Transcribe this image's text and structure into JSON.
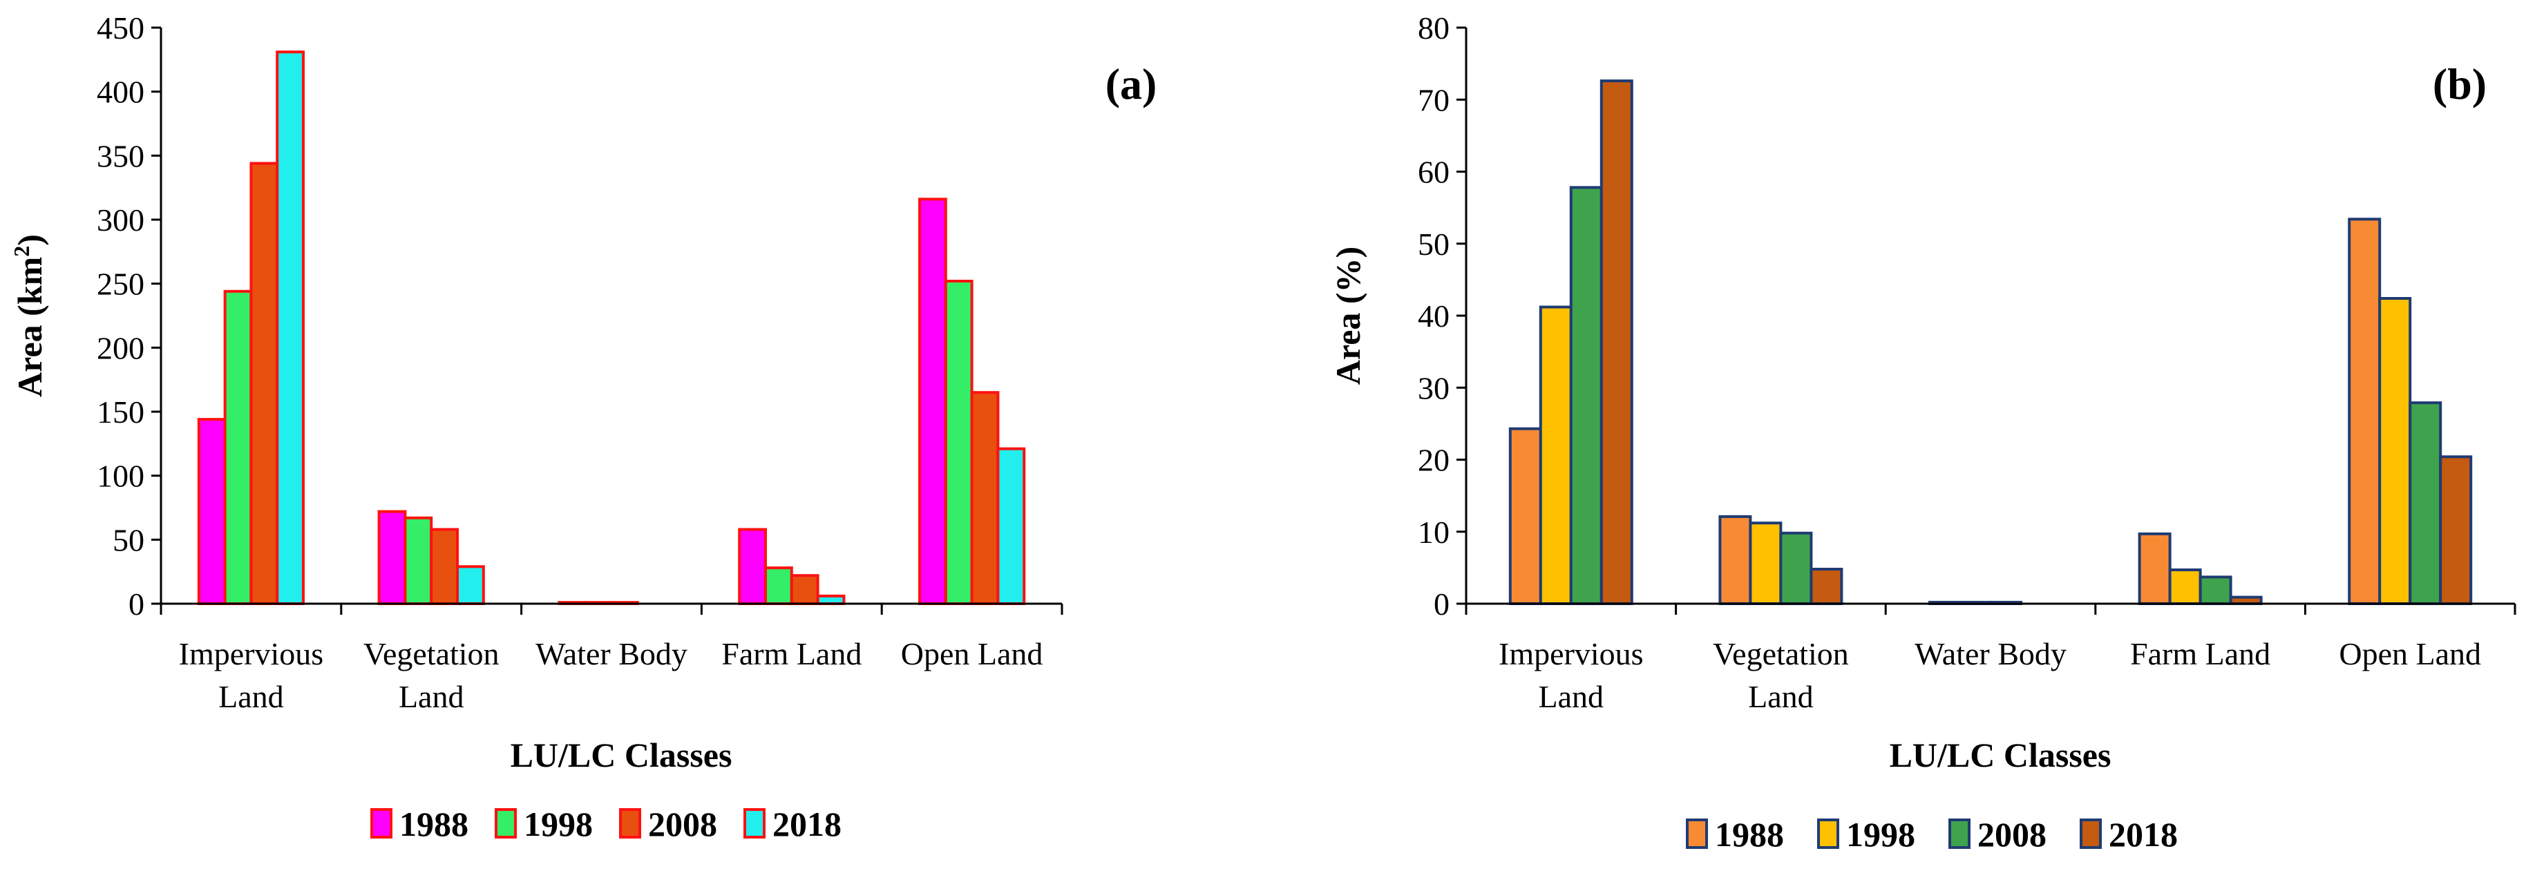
{
  "chart_data": [
    {
      "type": "bar",
      "panel_label": "(a)",
      "ylabel_main": "Area (km",
      "ylabel_sup": "2",
      "ylabel_close": ")",
      "xlabel": "LU/LC Classes",
      "ylim": [
        0,
        450
      ],
      "yticks": [
        "0",
        "50",
        "100",
        "150",
        "200",
        "250",
        "300",
        "350",
        "400",
        "450"
      ],
      "categories": [
        [
          "Impervious",
          "Land"
        ],
        [
          "Vegetation",
          "Land"
        ],
        [
          "Water Body"
        ],
        [
          "Farm Land"
        ],
        [
          "Open Land"
        ]
      ],
      "series": [
        {
          "name": "1988",
          "values": [
            144,
            72,
            1,
            58,
            316
          ]
        },
        {
          "name": "1998",
          "values": [
            244,
            67,
            1,
            28,
            252
          ]
        },
        {
          "name": "2008",
          "values": [
            344,
            58,
            1,
            22,
            165
          ]
        },
        {
          "name": "2018",
          "values": [
            431,
            29,
            0,
            6,
            121
          ]
        }
      ],
      "colors": {
        "fills": [
          "#ff00ff",
          "#33ee66",
          "#e85010",
          "#22eeee"
        ],
        "edge": "#ff1111"
      },
      "legend_position": "bottom"
    },
    {
      "type": "bar",
      "panel_label": "(b)",
      "ylabel_main": "Area (%)",
      "xlabel": "LU/LC Classes",
      "ylim": [
        0,
        80
      ],
      "yticks": [
        "0",
        "10",
        "20",
        "30",
        "40",
        "50",
        "60",
        "70",
        "80"
      ],
      "categories": [
        [
          "Impervious",
          "Land"
        ],
        [
          "Vegetation",
          "Land"
        ],
        [
          "Water Body"
        ],
        [
          "Farm Land"
        ],
        [
          "Open Land"
        ]
      ],
      "series": [
        {
          "name": "1988",
          "values": [
            24.3,
            12.1,
            0.2,
            9.7,
            53.4
          ]
        },
        {
          "name": "1998",
          "values": [
            41.2,
            11.2,
            0.2,
            4.7,
            42.4
          ]
        },
        {
          "name": "2008",
          "values": [
            57.8,
            9.8,
            0.2,
            3.7,
            27.9
          ]
        },
        {
          "name": "2018",
          "values": [
            72.6,
            4.8,
            0,
            0.9,
            20.4
          ]
        }
      ],
      "colors": {
        "fills": [
          "#f98a34",
          "#ffc000",
          "#3fa34d",
          "#c55a11"
        ],
        "edge": "#1f3b73"
      },
      "legend_position": "bottom"
    }
  ]
}
